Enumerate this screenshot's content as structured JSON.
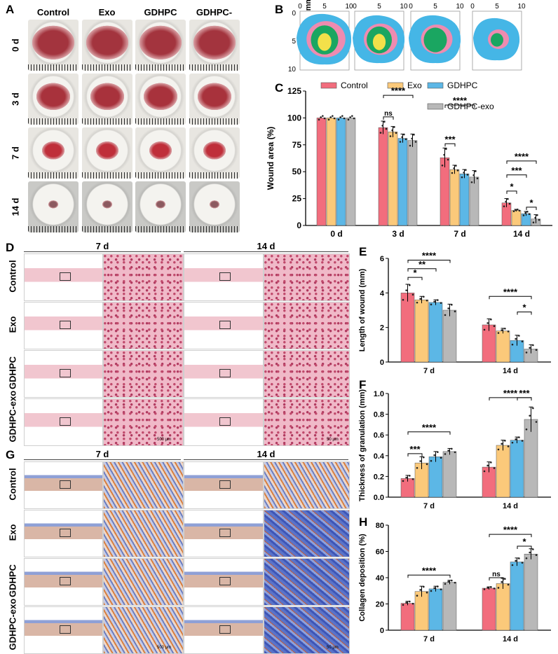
{
  "panel_labels": {
    "A": "A",
    "B": "B",
    "C": "C",
    "D": "D",
    "E": "E",
    "F": "F",
    "G": "G",
    "H": "H"
  },
  "panelA": {
    "columns": [
      "Control",
      "Exo",
      "GDHPC",
      "GDHPC-exo"
    ],
    "rows": [
      "0 d",
      "3 d",
      "7 d",
      "14 d"
    ]
  },
  "panelB": {
    "xticks": [
      "0",
      "5",
      "10"
    ],
    "yticks": [
      "0",
      "5",
      "10"
    ],
    "ylabel": "Distance (mm)",
    "colors": {
      "d0": "#45b6e6",
      "d3": "#ee8bb0",
      "d7": "#1aa661",
      "d14": "#f3e04a"
    }
  },
  "histology": {
    "col_headers": [
      "7 d",
      "14 d"
    ],
    "rows": [
      "Control",
      "Exo",
      "GDHPC",
      "GDHPC-exo"
    ],
    "scale_left": "500 μm",
    "scale_right": "50 μm"
  },
  "legend": [
    "Control",
    "Exo",
    "GDHPC",
    "GDHPC-exo"
  ],
  "colors": {
    "Control": "#f26d7d",
    "Exo": "#fbc97a",
    "GDHPC": "#5cb7e6",
    "GDHPC-exo": "#b8b8b8"
  },
  "chart_data": [
    {
      "panel": "C",
      "type": "bar",
      "categories": [
        "0 d",
        "3 d",
        "7 d",
        "14 d"
      ],
      "ylabel": "Wound area (%)",
      "ylim": [
        0,
        125
      ],
      "yticks": [
        0,
        25,
        50,
        75,
        100,
        125
      ],
      "series": [
        {
          "name": "Control",
          "values": [
            100,
            91,
            63,
            21
          ],
          "err": [
            0,
            6,
            9,
            4
          ]
        },
        {
          "name": "Exo",
          "values": [
            100,
            87,
            52,
            14
          ],
          "err": [
            0,
            5,
            4,
            1
          ]
        },
        {
          "name": "GDHPC",
          "values": [
            100,
            81,
            48,
            11
          ],
          "err": [
            0,
            4,
            4,
            2
          ]
        },
        {
          "name": "GDHPC-exo",
          "values": [
            100,
            79,
            45,
            6
          ],
          "err": [
            0,
            6,
            6,
            4
          ]
        }
      ],
      "annotations": [
        "ns",
        "****",
        "***",
        "****",
        "****",
        "***",
        "*",
        "*"
      ]
    },
    {
      "panel": "E",
      "type": "bar",
      "categories": [
        "7 d",
        "14 d"
      ],
      "ylabel": "Length of wound (mm)",
      "ylim": [
        0,
        6
      ],
      "yticks": [
        0,
        2,
        4,
        6
      ],
      "series": [
        {
          "name": "Control",
          "values": [
            4.0,
            2.15
          ],
          "err": [
            0.5,
            0.35
          ]
        },
        {
          "name": "Exo",
          "values": [
            3.6,
            1.8
          ],
          "err": [
            0.2,
            0.15
          ]
        },
        {
          "name": "GDHPC",
          "values": [
            3.45,
            1.25
          ],
          "err": [
            0.15,
            0.3
          ]
        },
        {
          "name": "GDHPC-exo",
          "values": [
            3.0,
            0.75
          ],
          "err": [
            0.35,
            0.25
          ]
        }
      ],
      "annotations": [
        "*",
        "**",
        "****",
        "****",
        "*"
      ]
    },
    {
      "panel": "F",
      "type": "bar",
      "categories": [
        "7 d",
        "14 d"
      ],
      "ylabel": "Thickness of granulation (mm)",
      "ylim": [
        0,
        1.0
      ],
      "yticks": [
        "0.0",
        "0.2",
        "0.4",
        "0.6",
        "0.8",
        "1.0"
      ],
      "series": [
        {
          "name": "Control",
          "values": [
            0.18,
            0.29
          ],
          "err": [
            0.03,
            0.05
          ]
        },
        {
          "name": "Exo",
          "values": [
            0.33,
            0.5
          ],
          "err": [
            0.06,
            0.05
          ]
        },
        {
          "name": "GDHPC",
          "values": [
            0.39,
            0.55
          ],
          "err": [
            0.05,
            0.03
          ]
        },
        {
          "name": "GDHPC-exo",
          "values": [
            0.44,
            0.75
          ],
          "err": [
            0.03,
            0.12
          ]
        }
      ],
      "annotations": [
        "***",
        "****",
        "****",
        "***"
      ]
    },
    {
      "panel": "H",
      "type": "bar",
      "categories": [
        "7 d",
        "14 d"
      ],
      "ylabel": "Collagen deposition (%)",
      "ylim": [
        0,
        80
      ],
      "yticks": [
        0,
        20,
        40,
        60,
        80
      ],
      "series": [
        {
          "name": "Control",
          "values": [
            20.5,
            32
          ],
          "err": [
            1.5,
            1
          ]
        },
        {
          "name": "Exo",
          "values": [
            29.5,
            35.5
          ],
          "err": [
            4,
            4
          ]
        },
        {
          "name": "GDHPC",
          "values": [
            31.5,
            52
          ],
          "err": [
            2,
            3
          ]
        },
        {
          "name": "GDHPC-exo",
          "values": [
            36.5,
            58
          ],
          "err": [
            1.5,
            4
          ]
        }
      ],
      "annotations": [
        "****",
        "ns",
        "****",
        "*"
      ]
    }
  ]
}
